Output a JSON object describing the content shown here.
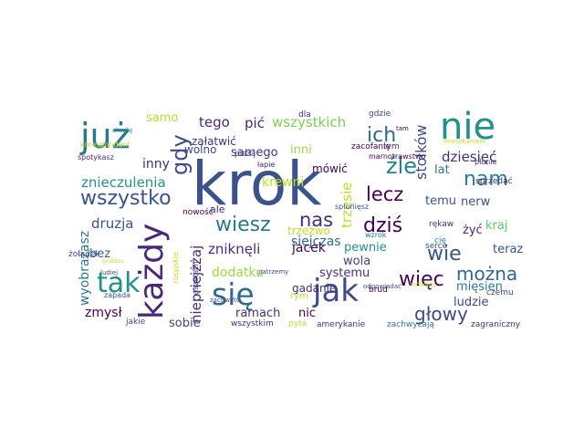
{
  "words": [
    {
      "text": "krok",
      "color": "#3b528b"
    },
    {
      "text": "nie",
      "color": "#21918c"
    },
    {
      "text": "już",
      "color": "#2a788e"
    },
    {
      "text": "każdy",
      "color": "#482878"
    },
    {
      "text": "się",
      "color": "#31688e"
    },
    {
      "text": "jak",
      "color": "#3e4a89"
    },
    {
      "text": "tak",
      "color": "#21918c"
    },
    {
      "text": "wszystko",
      "color": "#3b528b"
    },
    {
      "text": "gdy",
      "color": "#3e4a89"
    },
    {
      "text": "nam",
      "color": "#26828e"
    },
    {
      "text": "ich",
      "color": "#31688e"
    },
    {
      "text": "źle",
      "color": "#26828e"
    },
    {
      "text": "lecz",
      "color": "#440154"
    },
    {
      "text": "dziś",
      "color": "#440154"
    },
    {
      "text": "nas",
      "color": "#472d7b"
    },
    {
      "text": "wiesz",
      "color": "#2a788e"
    },
    {
      "text": "wie",
      "color": "#3b528b"
    },
    {
      "text": "więc",
      "color": "#440154"
    },
    {
      "text": "można",
      "color": "#31688e"
    },
    {
      "text": "głowy",
      "color": "#3e4a89"
    },
    {
      "text": "stołków",
      "color": "#3e4a89"
    },
    {
      "text": "dziesięć",
      "color": "#472d7b"
    },
    {
      "text": "zniknęli",
      "color": "#472d7b"
    },
    {
      "text": "niepriejżżaj",
      "color": "#482878"
    },
    {
      "text": "tego",
      "color": "#482878"
    },
    {
      "text": "pić",
      "color": "#482878"
    },
    {
      "text": "wszystkich",
      "color": "#7ad151"
    },
    {
      "text": "samo",
      "color": "#b5de2b"
    },
    {
      "text": "samego",
      "color": "#472d7b"
    },
    {
      "text": "inni",
      "color": "#a0da39"
    },
    {
      "text": "mówić",
      "color": "#440154"
    },
    {
      "text": "załatwić",
      "color": "#472d7b"
    },
    {
      "text": "wolno",
      "color": "#3e4a89"
    },
    {
      "text": "inny",
      "color": "#482878"
    },
    {
      "text": "znieczulenia",
      "color": "#21918c"
    },
    {
      "text": "krewni",
      "color": "#bddf26"
    },
    {
      "text": "druzja",
      "color": "#3b528b"
    },
    {
      "text": "ale",
      "color": "#482878"
    },
    {
      "text": "dodatku",
      "color": "#a0da39"
    },
    {
      "text": "siejczas",
      "color": "#31688e"
    },
    {
      "text": "jacek",
      "color": "#440154"
    },
    {
      "text": "wola",
      "color": "#433e85"
    },
    {
      "text": "trzęsie",
      "color": "#bddf26"
    },
    {
      "text": "trzeźwo",
      "color": "#bddf26"
    },
    {
      "text": "temu",
      "color": "#3b528b"
    },
    {
      "text": "nerw",
      "color": "#3b528b"
    },
    {
      "text": "lat",
      "color": "#2a788e"
    },
    {
      "text": "kraj",
      "color": "#5ec962"
    },
    {
      "text": "żyć",
      "color": "#482878"
    },
    {
      "text": "teraz",
      "color": "#3b528b"
    },
    {
      "text": "pewnie",
      "color": "#21918c"
    },
    {
      "text": "systemu",
      "color": "#472d7b"
    },
    {
      "text": "mięsien",
      "color": "#2a788e"
    },
    {
      "text": "ludzie",
      "color": "#3e4a89"
    },
    {
      "text": "wyobrażasz",
      "color": "#2a788e"
    },
    {
      "text": "bez",
      "color": "#31688e"
    },
    {
      "text": "zmysł",
      "color": "#440154"
    },
    {
      "text": "ramach",
      "color": "#472d7b"
    },
    {
      "text": "nic",
      "color": "#440154"
    },
    {
      "text": "sobie",
      "color": "#3e4a89"
    },
    {
      "text": "gadanie",
      "color": "#482878"
    },
    {
      "text": "rym",
      "color": "#bddf26"
    },
    {
      "text": "dla",
      "color": "#482878"
    },
    {
      "text": "gdzie",
      "color": "#3e4a89"
    },
    {
      "text": "tam",
      "color": "#440154"
    },
    {
      "text": "mieszkaniem",
      "color": "#bddf26"
    },
    {
      "text": "zacofanie",
      "color": "#440154"
    },
    {
      "text": "tym",
      "color": "#482878"
    },
    {
      "text": "chwilę",
      "color": "#21918c"
    },
    {
      "text": "korespondent",
      "color": "#bddf26"
    },
    {
      "text": "piszą",
      "color": "#3e4a89"
    },
    {
      "text": "łapie",
      "color": "#482878"
    },
    {
      "text": "spotykasz",
      "color": "#482878"
    },
    {
      "text": "marnotrawstwo",
      "color": "#440154"
    },
    {
      "text": "płonie",
      "color": "#482878"
    },
    {
      "text": "sprzedać",
      "color": "#472d7b"
    },
    {
      "text": "splunięsz",
      "color": "#3b528b"
    },
    {
      "text": "wzrok",
      "color": "#2a788e"
    },
    {
      "text": "rękaw",
      "color": "#472d7b"
    },
    {
      "text": "serce",
      "color": "#3e4a89"
    },
    {
      "text": "cię",
      "color": "#21918c"
    },
    {
      "text": "nowość",
      "color": "#440154"
    },
    {
      "text": "żołądek",
      "color": "#3e4a89"
    },
    {
      "text": "grubsza",
      "color": "#bddf26"
    },
    {
      "text": "ludiej",
      "color": "#3e4a89"
    },
    {
      "text": "zapada",
      "color": "#3e4a89"
    },
    {
      "text": "rosyjskie",
      "color": "#bddf26"
    },
    {
      "text": "gazetach",
      "color": "#3e4a89"
    },
    {
      "text": "patrzemy",
      "color": "#3e4a89"
    },
    {
      "text": "zachwytu",
      "color": "#3e4a89"
    },
    {
      "text": "odpowiadać",
      "color": "#3e4a89"
    },
    {
      "text": "brud",
      "color": "#440154"
    },
    {
      "text": "mówiłeś",
      "color": "#bddf26"
    },
    {
      "text": "czemu",
      "color": "#3e4a89"
    },
    {
      "text": "jakie",
      "color": "#3e4a89"
    },
    {
      "text": "wszystkim",
      "color": "#472d7b"
    },
    {
      "text": "pyta",
      "color": "#bddf26"
    },
    {
      "text": "amerykanie",
      "color": "#472d7b"
    },
    {
      "text": "zachwycają",
      "color": "#2a788e"
    },
    {
      "text": "zagraniczny",
      "color": "#472d7b"
    }
  ]
}
